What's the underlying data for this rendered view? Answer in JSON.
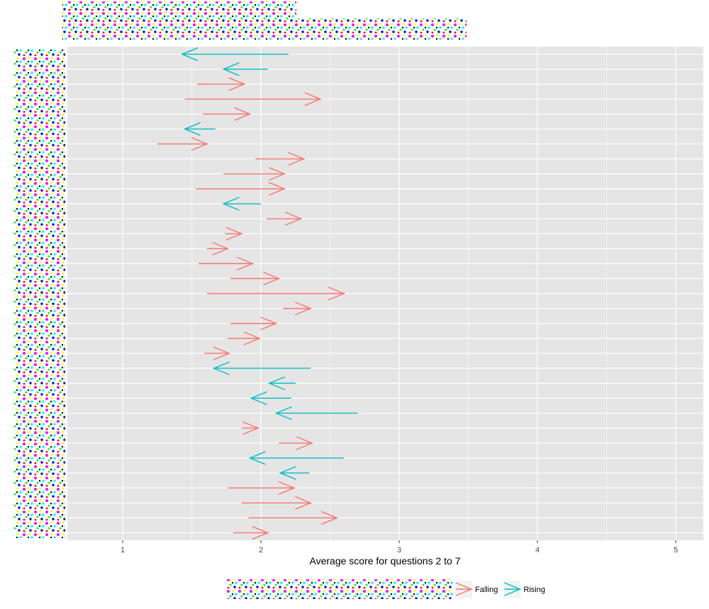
{
  "chart_data": {
    "type": "arrow",
    "xlabel": "Average score for questions 2 to 7",
    "ylabel": "",
    "title": "",
    "xlim": [
      0.6,
      5.2
    ],
    "xticks": [
      1,
      2,
      3,
      4,
      5
    ],
    "tick_labels": [
      "1",
      "2",
      "3",
      "4",
      "5"
    ],
    "grid": true,
    "legend_position": "bottom",
    "colors": {
      "panel_bg": "#e5e5e5",
      "grid": "#ffffff",
      "falling": "#f8766d",
      "rising": "#00bfc4",
      "axis_text": "#4d4d4d",
      "axis_title": "#000000"
    },
    "series": [
      {
        "name": "Falling",
        "color": "#f8766d"
      },
      {
        "name": "Rising",
        "color": "#00bfc4"
      }
    ],
    "legend": {
      "items": [
        {
          "label": "Falling",
          "key": "falling"
        },
        {
          "label": "Rising",
          "key": "rising"
        }
      ]
    },
    "arrows": [
      {
        "from": 2.2,
        "to": 1.43,
        "series": "Rising"
      },
      {
        "from": 2.05,
        "to": 1.73,
        "series": "Rising"
      },
      {
        "from": 1.54,
        "to": 1.88,
        "series": "Falling"
      },
      {
        "from": 1.45,
        "to": 2.43,
        "series": "Falling"
      },
      {
        "from": 1.58,
        "to": 1.92,
        "series": "Falling"
      },
      {
        "from": 1.67,
        "to": 1.45,
        "series": "Rising"
      },
      {
        "from": 1.25,
        "to": 1.61,
        "series": "Falling"
      },
      {
        "from": 1.96,
        "to": 2.31,
        "series": "Falling"
      },
      {
        "from": 1.73,
        "to": 2.17,
        "series": "Falling"
      },
      {
        "from": 1.53,
        "to": 2.17,
        "series": "Falling"
      },
      {
        "from": 2.0,
        "to": 1.73,
        "series": "Rising"
      },
      {
        "from": 2.04,
        "to": 2.29,
        "series": "Falling"
      },
      {
        "from": 1.74,
        "to": 1.86,
        "series": "Falling"
      },
      {
        "from": 1.61,
        "to": 1.76,
        "series": "Falling"
      },
      {
        "from": 1.55,
        "to": 1.94,
        "series": "Falling"
      },
      {
        "from": 1.78,
        "to": 2.13,
        "series": "Falling"
      },
      {
        "from": 1.61,
        "to": 2.6,
        "series": "Falling"
      },
      {
        "from": 2.16,
        "to": 2.36,
        "series": "Falling"
      },
      {
        "from": 1.78,
        "to": 2.11,
        "series": "Falling"
      },
      {
        "from": 1.76,
        "to": 1.99,
        "series": "Falling"
      },
      {
        "from": 1.59,
        "to": 1.77,
        "series": "Falling"
      },
      {
        "from": 2.36,
        "to": 1.66,
        "series": "Rising"
      },
      {
        "from": 2.25,
        "to": 2.06,
        "series": "Rising"
      },
      {
        "from": 2.22,
        "to": 1.93,
        "series": "Rising"
      },
      {
        "from": 2.7,
        "to": 2.11,
        "series": "Rising"
      },
      {
        "from": 1.86,
        "to": 1.98,
        "series": "Falling"
      },
      {
        "from": 2.13,
        "to": 2.37,
        "series": "Falling"
      },
      {
        "from": 2.6,
        "to": 1.92,
        "series": "Rising"
      },
      {
        "from": 2.35,
        "to": 2.14,
        "series": "Rising"
      },
      {
        "from": 1.76,
        "to": 2.24,
        "series": "Falling"
      },
      {
        "from": 1.86,
        "to": 2.36,
        "series": "Falling"
      },
      {
        "from": 1.91,
        "to": 2.55,
        "series": "Falling"
      },
      {
        "from": 1.8,
        "to": 2.05,
        "series": "Falling"
      }
    ]
  }
}
